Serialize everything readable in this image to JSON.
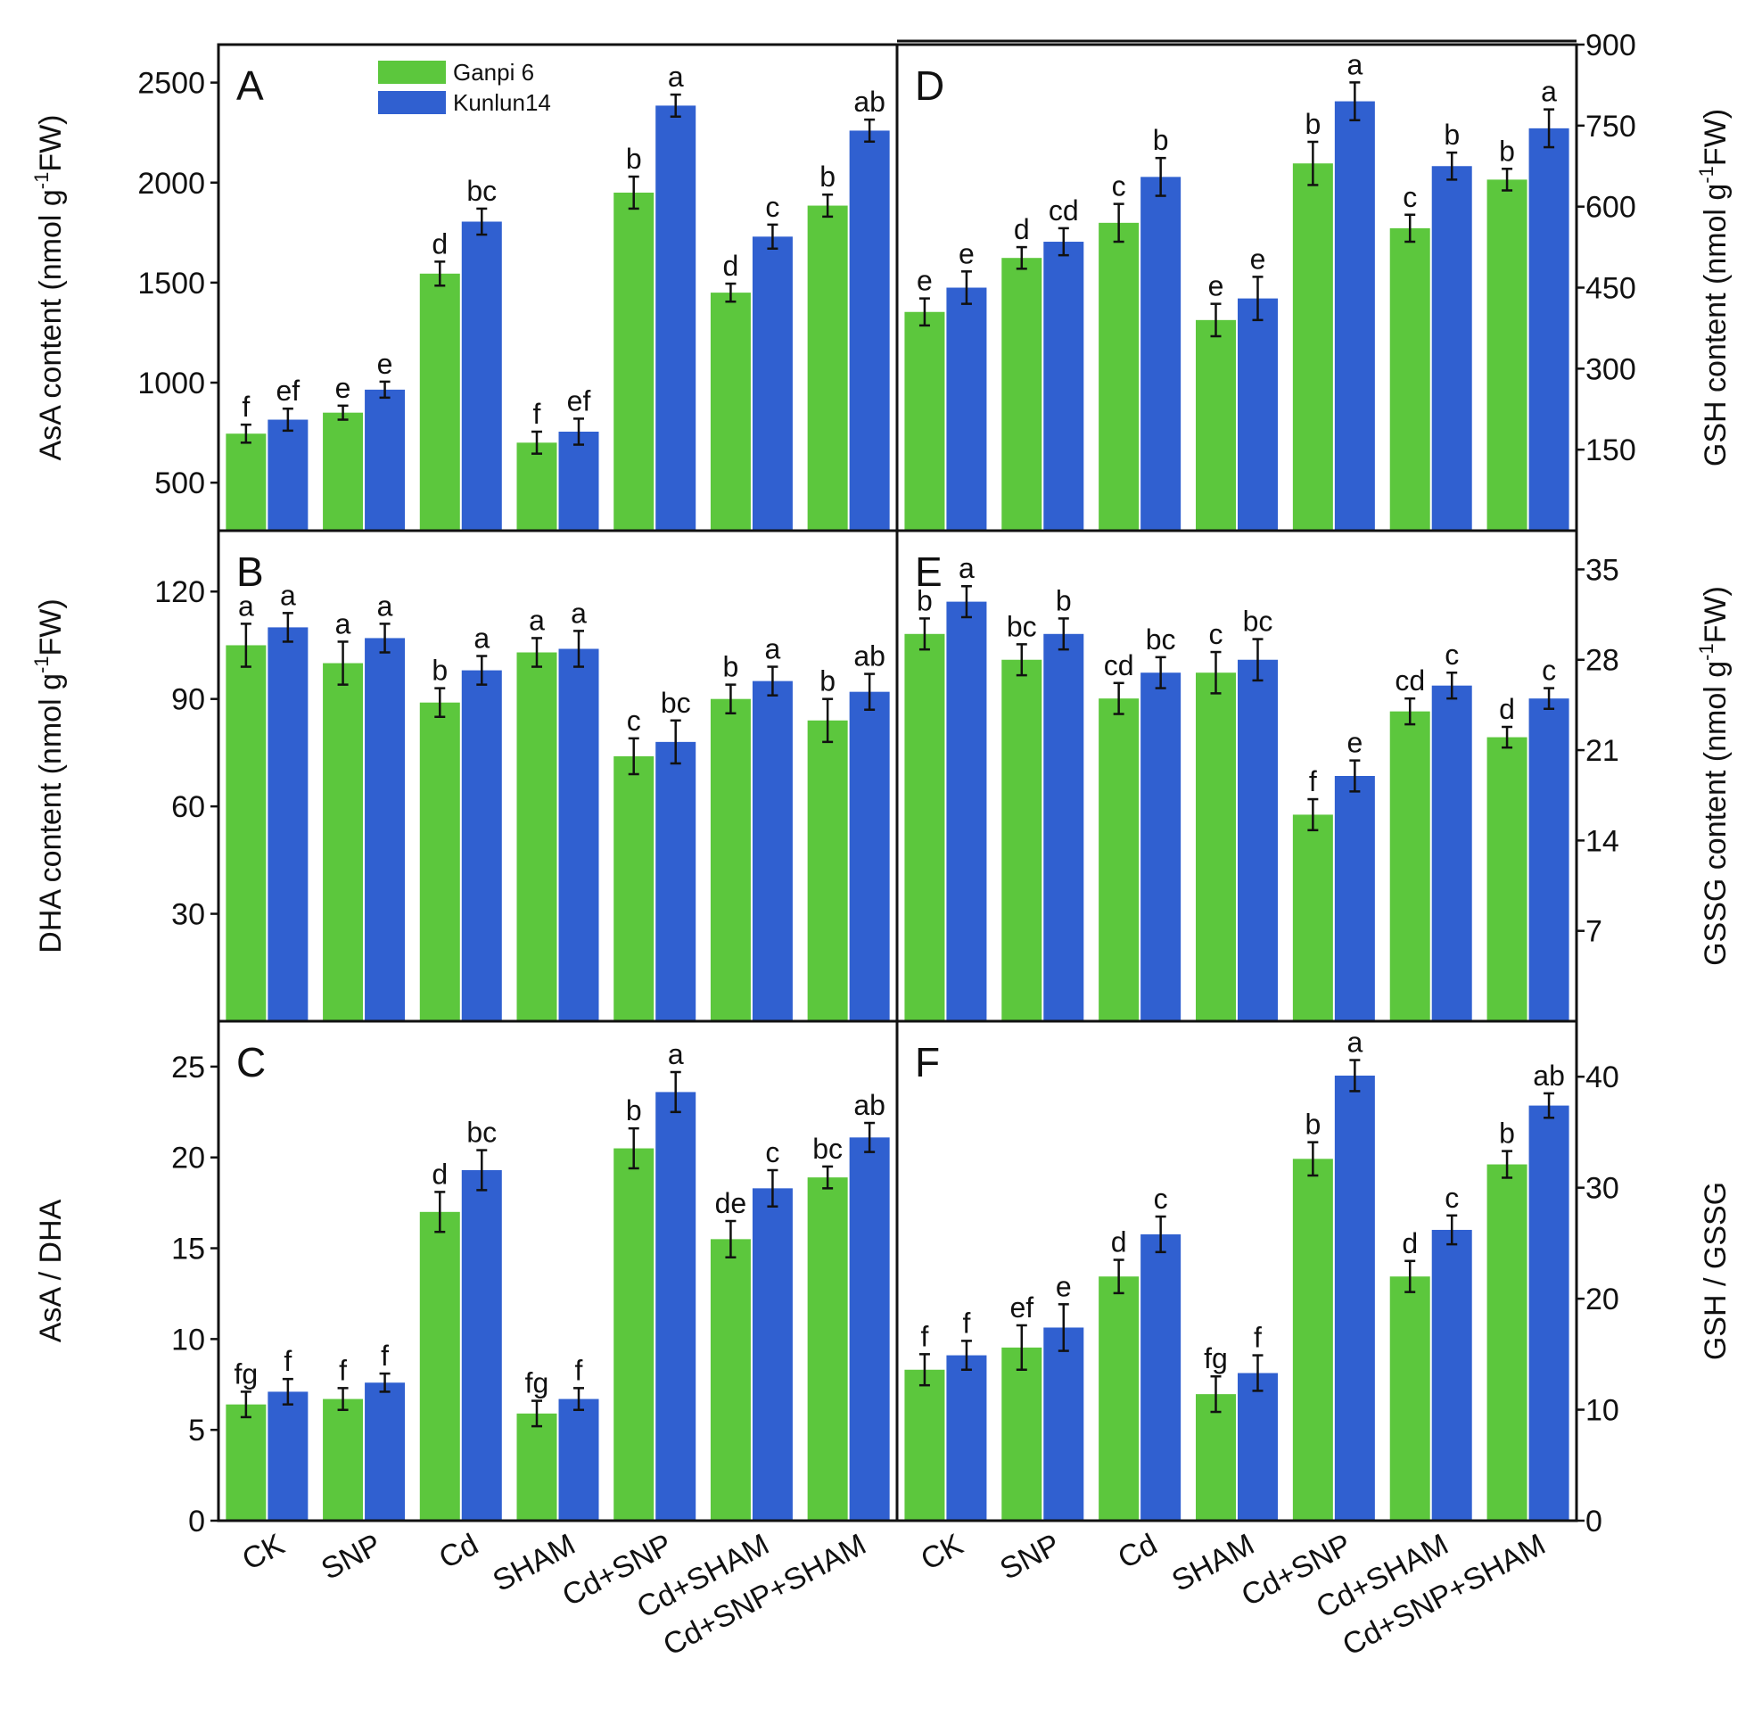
{
  "legend": [
    "Ganpi 6",
    "Kunlun14"
  ],
  "colors": {
    "Ganpi 6": "#5cc73d",
    "Kunlun14": "#3060d0"
  },
  "categories": [
    "CK",
    "SNP",
    "Cd",
    "SHAM",
    "Cd+SNP",
    "Cd+SHAM",
    "Cd+SNP+SHAM"
  ],
  "chart_data": [
    {
      "id": "A",
      "type": "bar",
      "panel_label": "A",
      "ylabel_prefix": "AsA content (nmol g",
      "ylabel_sup": "-1",
      "ylabel_suffix": "FW)",
      "ylabel_side": "left",
      "ylim": [
        260,
        2690
      ],
      "yticks": [
        500,
        1000,
        1500,
        2000,
        2500
      ],
      "categories": [
        "CK",
        "SNP",
        "Cd",
        "SHAM",
        "Cd+SNP",
        "Cd+SHAM",
        "Cd+SNP+SHAM"
      ],
      "series": [
        {
          "name": "Ganpi 6",
          "values": [
            745,
            850,
            1545,
            700,
            1950,
            1450,
            1885
          ],
          "errors": [
            45,
            35,
            60,
            55,
            80,
            45,
            55
          ],
          "labels": [
            "f",
            "e",
            "d",
            "f",
            "b",
            "d",
            "b"
          ]
        },
        {
          "name": "Kunlun14",
          "values": [
            815,
            965,
            1805,
            755,
            2385,
            1730,
            2260
          ],
          "errors": [
            55,
            40,
            65,
            65,
            55,
            60,
            55
          ],
          "labels": [
            "ef",
            "e",
            "bc",
            "ef",
            "a",
            "c",
            "ab"
          ]
        }
      ]
    },
    {
      "id": "D",
      "type": "bar",
      "panel_label": "D",
      "ylabel_prefix": "GSH content (nmol g",
      "ylabel_sup": "-1",
      "ylabel_suffix": "FW)",
      "ylabel_side": "right",
      "ylim": [
        0,
        900
      ],
      "yticks": [
        150,
        300,
        450,
        600,
        750,
        900
      ],
      "categories": [
        "CK",
        "SNP",
        "Cd",
        "SHAM",
        "Cd+SNP",
        "Cd+SHAM",
        "Cd+SNP+SHAM"
      ],
      "series": [
        {
          "name": "Ganpi 6",
          "values": [
            405,
            505,
            570,
            390,
            680,
            560,
            650
          ],
          "errors": [
            25,
            20,
            35,
            30,
            40,
            25,
            20
          ],
          "labels": [
            "e",
            "d",
            "c",
            "e",
            "b",
            "c",
            "b"
          ]
        },
        {
          "name": "Kunlun14",
          "values": [
            450,
            535,
            655,
            430,
            795,
            675,
            745
          ],
          "errors": [
            30,
            25,
            35,
            40,
            35,
            25,
            35
          ],
          "labels": [
            "e",
            "cd",
            "b",
            "e",
            "a",
            "b",
            "a"
          ]
        }
      ]
    },
    {
      "id": "B",
      "type": "bar",
      "panel_label": "B",
      "ylabel_prefix": "DHA content (nmol g",
      "ylabel_sup": "-1",
      "ylabel_suffix": "FW)",
      "ylabel_side": "left",
      "ylim": [
        0,
        137
      ],
      "yticks": [
        30,
        60,
        90,
        120
      ],
      "categories": [
        "CK",
        "SNP",
        "Cd",
        "SHAM",
        "Cd+SNP",
        "Cd+SHAM",
        "Cd+SNP+SHAM"
      ],
      "series": [
        {
          "name": "Ganpi 6",
          "values": [
            105,
            100,
            89,
            103,
            74,
            90,
            84
          ],
          "errors": [
            6,
            6,
            4,
            4,
            5,
            4,
            6
          ],
          "labels": [
            "a",
            "a",
            "b",
            "a",
            "c",
            "b",
            "b"
          ]
        },
        {
          "name": "Kunlun14",
          "values": [
            110,
            107,
            98,
            104,
            78,
            95,
            92
          ],
          "errors": [
            4,
            4,
            4,
            5,
            6,
            4,
            5
          ],
          "labels": [
            "a",
            "a",
            "a",
            "a",
            "bc",
            "a",
            "ab"
          ]
        }
      ]
    },
    {
      "id": "E",
      "type": "bar",
      "panel_label": "E",
      "ylabel_prefix": "GSSG content (nmol g",
      "ylabel_sup": "-1",
      "ylabel_suffix": "FW)",
      "ylabel_side": "right",
      "ylim": [
        0,
        38
      ],
      "yticks": [
        7,
        14,
        21,
        28,
        35
      ],
      "categories": [
        "CK",
        "SNP",
        "Cd",
        "SHAM",
        "Cd+SNP",
        "Cd+SHAM",
        "Cd+SNP+SHAM"
      ],
      "series": [
        {
          "name": "Ganpi 6",
          "values": [
            30,
            28,
            25,
            27,
            16,
            24,
            22
          ],
          "errors": [
            1.2,
            1.2,
            1.2,
            1.6,
            1.2,
            1,
            0.8
          ],
          "labels": [
            "b",
            "bc",
            "cd",
            "c",
            "f",
            "cd",
            "d"
          ]
        },
        {
          "name": "Kunlun14",
          "values": [
            32.5,
            30,
            27,
            28,
            19,
            26,
            25
          ],
          "errors": [
            1.2,
            1.2,
            1.2,
            1.6,
            1.2,
            1,
            0.8
          ],
          "labels": [
            "a",
            "b",
            "bc",
            "bc",
            "e",
            "c",
            "c"
          ]
        }
      ]
    },
    {
      "id": "C",
      "type": "bar",
      "panel_label": "C",
      "ylabel": "AsA / DHA",
      "ylabel_side": "left",
      "ylim": [
        0,
        27.5
      ],
      "yticks": [
        0,
        5,
        10,
        15,
        20,
        25
      ],
      "categories": [
        "CK",
        "SNP",
        "Cd",
        "SHAM",
        "Cd+SNP",
        "Cd+SHAM",
        "Cd+SNP+SHAM"
      ],
      "series": [
        {
          "name": "Ganpi 6",
          "values": [
            6.4,
            6.7,
            17,
            5.9,
            20.5,
            15.5,
            18.9
          ],
          "errors": [
            0.7,
            0.6,
            1.1,
            0.7,
            1.1,
            1,
            0.6
          ],
          "labels": [
            "fg",
            "f",
            "d",
            "fg",
            "b",
            "de",
            "bc"
          ]
        },
        {
          "name": "Kunlun14",
          "values": [
            7.1,
            7.6,
            19.3,
            6.7,
            23.6,
            18.3,
            21.1
          ],
          "errors": [
            0.7,
            0.5,
            1.1,
            0.6,
            1.1,
            1,
            0.8
          ],
          "labels": [
            "f",
            "f",
            "bc",
            "f",
            "a",
            "c",
            "ab"
          ]
        }
      ]
    },
    {
      "id": "F",
      "type": "bar",
      "panel_label": "F",
      "ylabel": "GSH / GSSG",
      "ylabel_side": "right",
      "ylim": [
        0,
        45
      ],
      "yticks": [
        0,
        10,
        20,
        30,
        40
      ],
      "categories": [
        "CK",
        "SNP",
        "Cd",
        "SHAM",
        "Cd+SNP",
        "Cd+SHAM",
        "Cd+SNP+SHAM"
      ],
      "series": [
        {
          "name": "Ganpi 6",
          "values": [
            13.6,
            15.6,
            22,
            11.4,
            32.6,
            22,
            32.1
          ],
          "errors": [
            1.4,
            2,
            1.5,
            1.6,
            1.5,
            1.4,
            1.2
          ],
          "labels": [
            "f",
            "ef",
            "d",
            "fg",
            "b",
            "d",
            "b"
          ]
        },
        {
          "name": "Kunlun14",
          "values": [
            14.9,
            17.4,
            25.8,
            13.3,
            40.1,
            26.2,
            37.4
          ],
          "errors": [
            1.3,
            2.1,
            1.6,
            1.6,
            1.4,
            1.3,
            1.1
          ],
          "labels": [
            "f",
            "e",
            "c",
            "f",
            "a",
            "c",
            "ab"
          ]
        }
      ]
    }
  ]
}
